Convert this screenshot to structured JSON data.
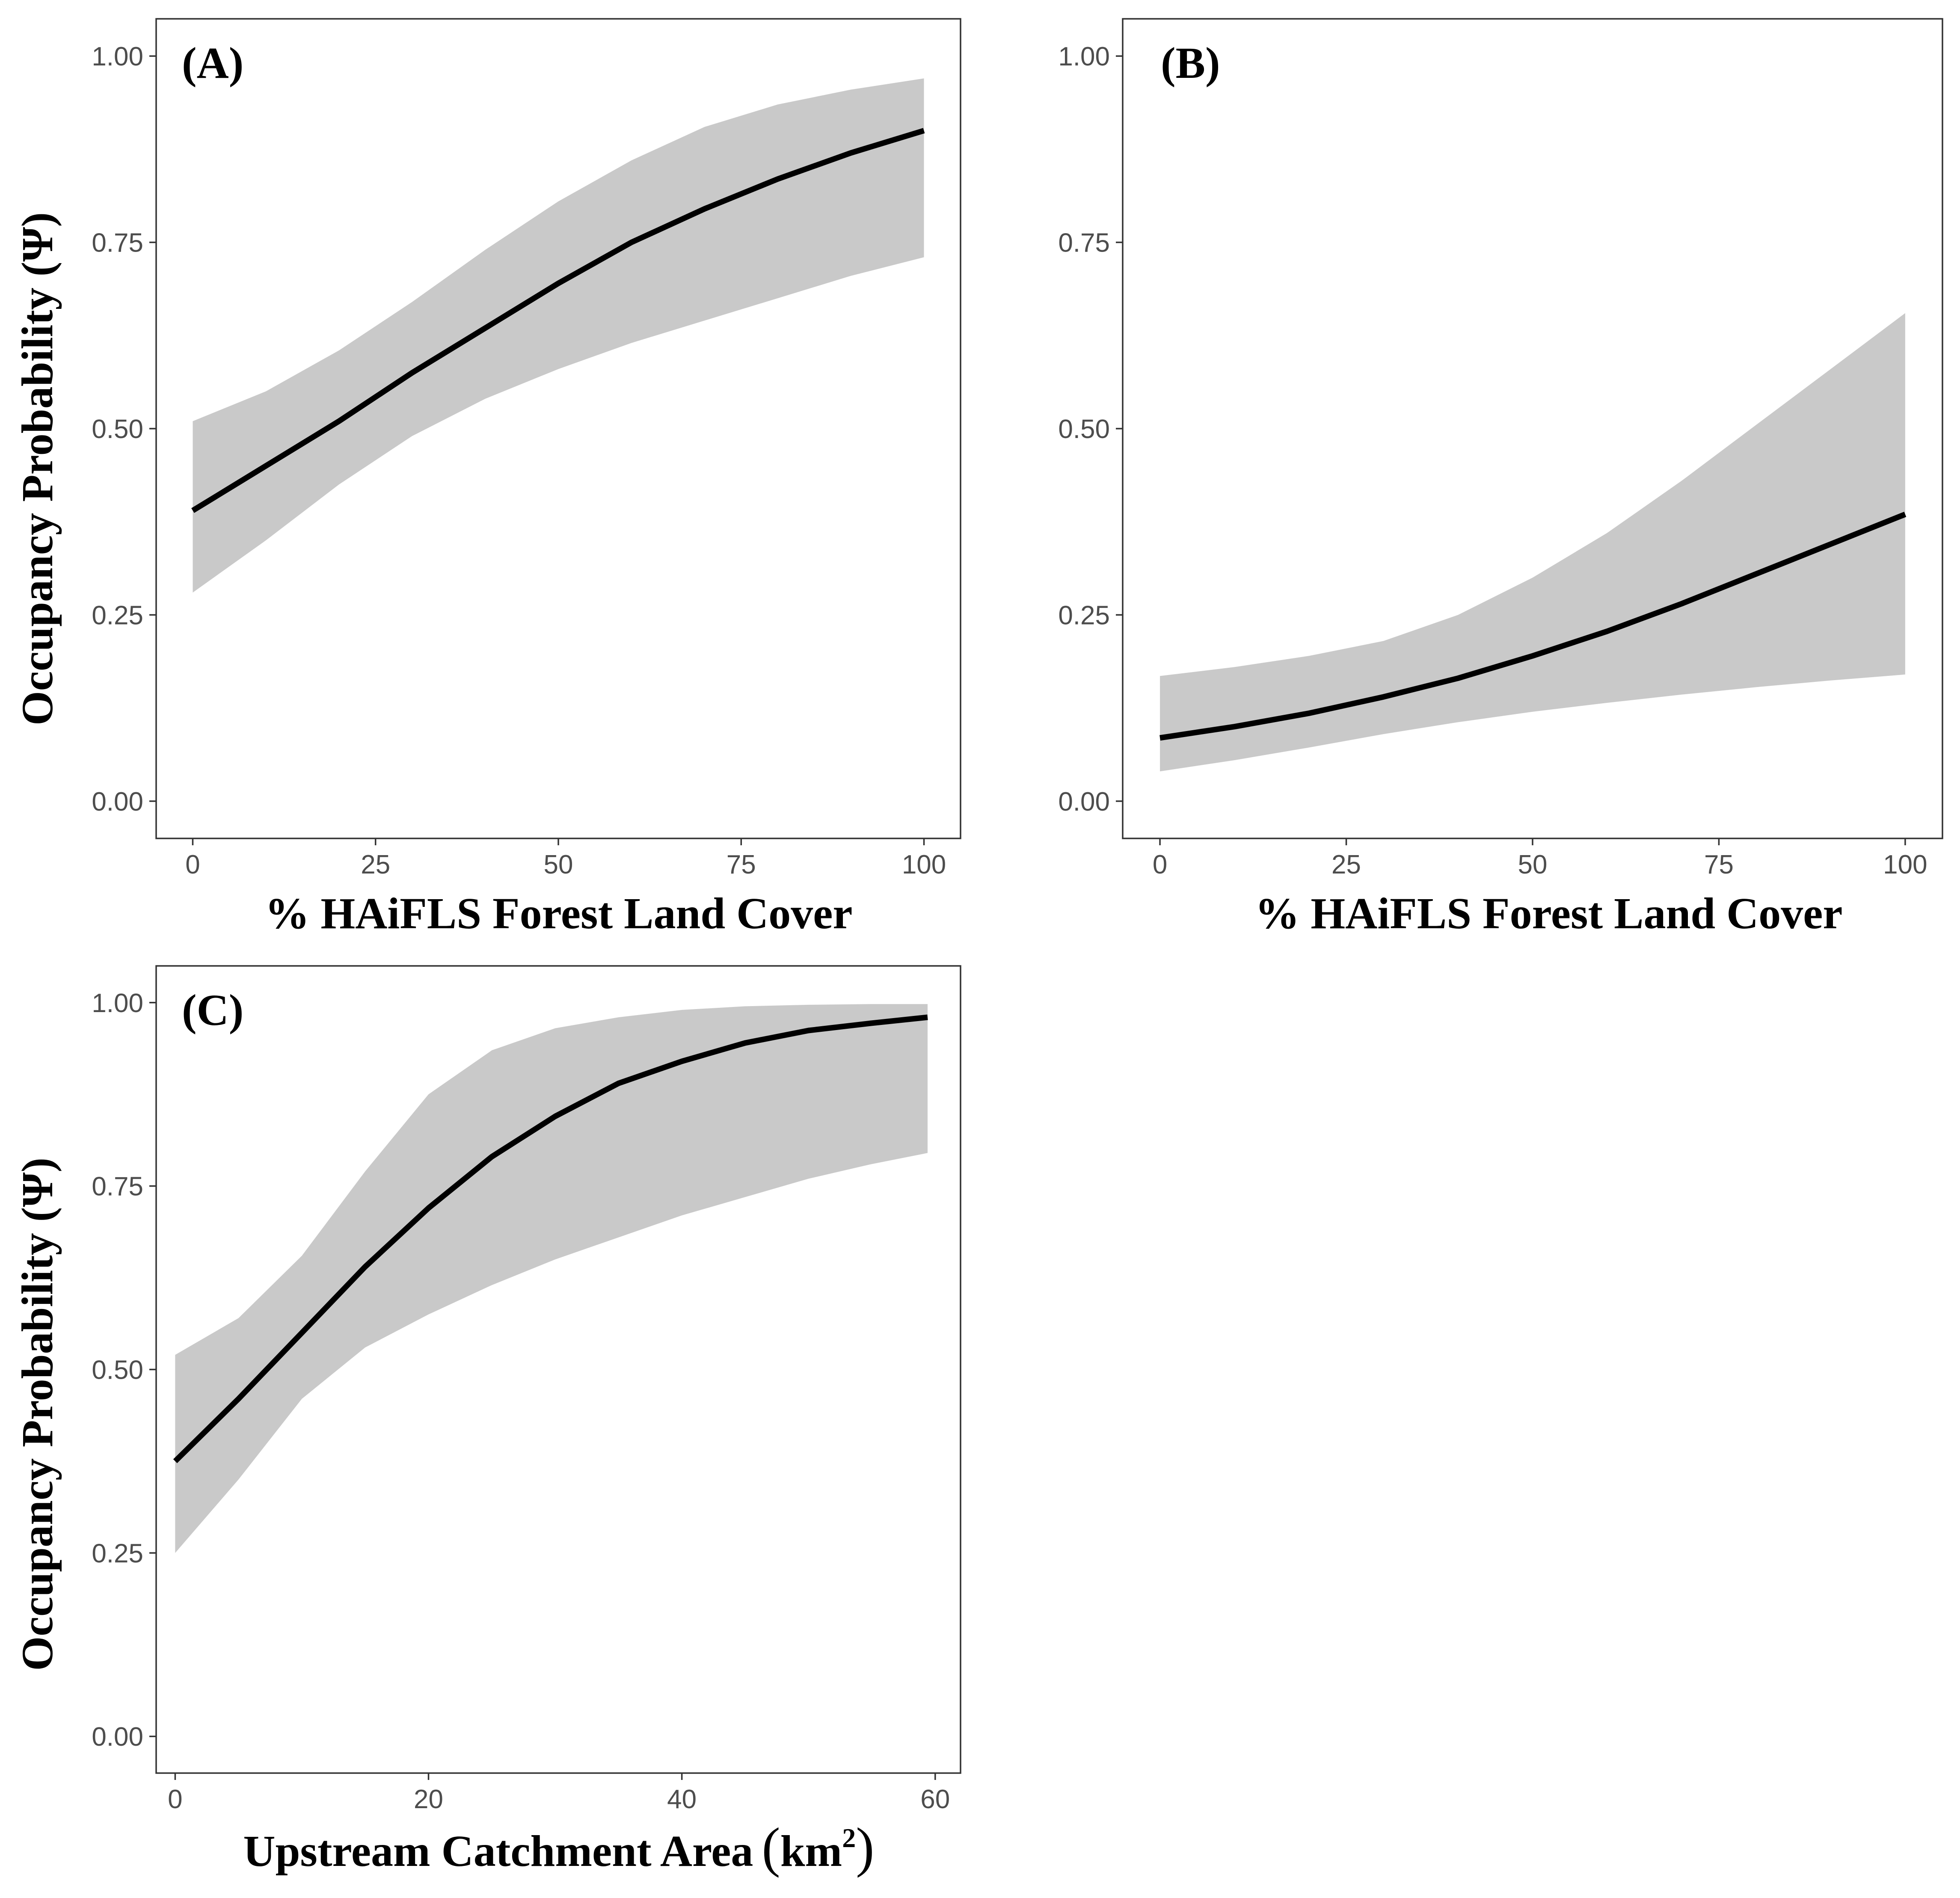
{
  "colors": {
    "band": "#c9c9c9",
    "line": "#000000",
    "frame": "#333333",
    "tick": "#333333",
    "tick_label": "#4d4d4d"
  },
  "chart_data": [
    {
      "type": "line",
      "panel_label": "(A)",
      "xlabel": "% HAiFLS Forest Land Cover",
      "ylabel": "Occupancy Probability (Ψ)",
      "xlim": [
        -5,
        105
      ],
      "ylim": [
        -0.05,
        1.05
      ],
      "x_ticks": [
        0,
        25,
        50,
        75,
        100
      ],
      "x_tick_labels": [
        "0",
        "25",
        "50",
        "75",
        "100"
      ],
      "y_ticks": [
        0,
        0.25,
        0.5,
        0.75,
        1
      ],
      "y_tick_labels": [
        "0.00",
        "0.25",
        "0.50",
        "0.75",
        "1.00"
      ],
      "grid": false,
      "series": [
        {
          "x": [
            0,
            10,
            20,
            30,
            40,
            50,
            60,
            70,
            80,
            90,
            100
          ],
          "fit": [
            0.39,
            0.45,
            0.51,
            0.575,
            0.635,
            0.695,
            0.75,
            0.795,
            0.835,
            0.87,
            0.9
          ],
          "lower": [
            0.28,
            0.35,
            0.425,
            0.49,
            0.54,
            0.58,
            0.615,
            0.645,
            0.675,
            0.705,
            0.73
          ],
          "upper": [
            0.51,
            0.55,
            0.605,
            0.67,
            0.74,
            0.805,
            0.86,
            0.905,
            0.935,
            0.955,
            0.97
          ]
        }
      ]
    },
    {
      "type": "line",
      "panel_label": "(B)",
      "xlabel": "% HAiFLS Forest Land Cover",
      "ylabel": "",
      "xlim": [
        -5,
        105
      ],
      "ylim": [
        -0.05,
        1.05
      ],
      "x_ticks": [
        0,
        25,
        50,
        75,
        100
      ],
      "x_tick_labels": [
        "0",
        "25",
        "50",
        "75",
        "100"
      ],
      "y_ticks": [
        0,
        0.25,
        0.5,
        0.75,
        1
      ],
      "y_tick_labels": [
        "0.00",
        "0.25",
        "0.50",
        "0.75",
        "1.00"
      ],
      "grid": false,
      "series": [
        {
          "x": [
            0,
            10,
            20,
            30,
            40,
            50,
            60,
            70,
            80,
            90,
            100
          ],
          "fit": [
            0.085,
            0.1,
            0.118,
            0.14,
            0.165,
            0.195,
            0.228,
            0.265,
            0.305,
            0.345,
            0.385
          ],
          "lower": [
            0.04,
            0.055,
            0.072,
            0.09,
            0.106,
            0.12,
            0.132,
            0.143,
            0.153,
            0.162,
            0.17
          ],
          "upper": [
            0.168,
            0.18,
            0.195,
            0.215,
            0.25,
            0.3,
            0.36,
            0.43,
            0.505,
            0.58,
            0.655
          ]
        }
      ]
    },
    {
      "type": "line",
      "panel_label": "(C)",
      "xlabel_main": "Upstream Catchment Area",
      "xlabel_unit": "km",
      "xlabel_sup": "2",
      "ylabel": "Occupancy Probability (Ψ)",
      "xlim": [
        -1.5,
        62
      ],
      "ylim": [
        -0.05,
        1.05
      ],
      "x_ticks": [
        0,
        20,
        40,
        60
      ],
      "x_tick_labels": [
        "0",
        "20",
        "40",
        "60"
      ],
      "y_ticks": [
        0,
        0.25,
        0.5,
        0.75,
        1
      ],
      "y_tick_labels": [
        "0.00",
        "0.25",
        "0.50",
        "0.75",
        "1.00"
      ],
      "grid": false,
      "series": [
        {
          "x": [
            0,
            5,
            10,
            15,
            20,
            25,
            30,
            35,
            40,
            45,
            50,
            55,
            59.4
          ],
          "fit": [
            0.375,
            0.46,
            0.55,
            0.64,
            0.72,
            0.79,
            0.845,
            0.89,
            0.92,
            0.945,
            0.962,
            0.972,
            0.98
          ],
          "lower": [
            0.25,
            0.35,
            0.46,
            0.53,
            0.575,
            0.615,
            0.65,
            0.68,
            0.71,
            0.735,
            0.76,
            0.78,
            0.795
          ],
          "upper": [
            0.52,
            0.57,
            0.655,
            0.77,
            0.875,
            0.935,
            0.965,
            0.98,
            0.99,
            0.995,
            0.997,
            0.998,
            0.998
          ]
        }
      ]
    }
  ]
}
